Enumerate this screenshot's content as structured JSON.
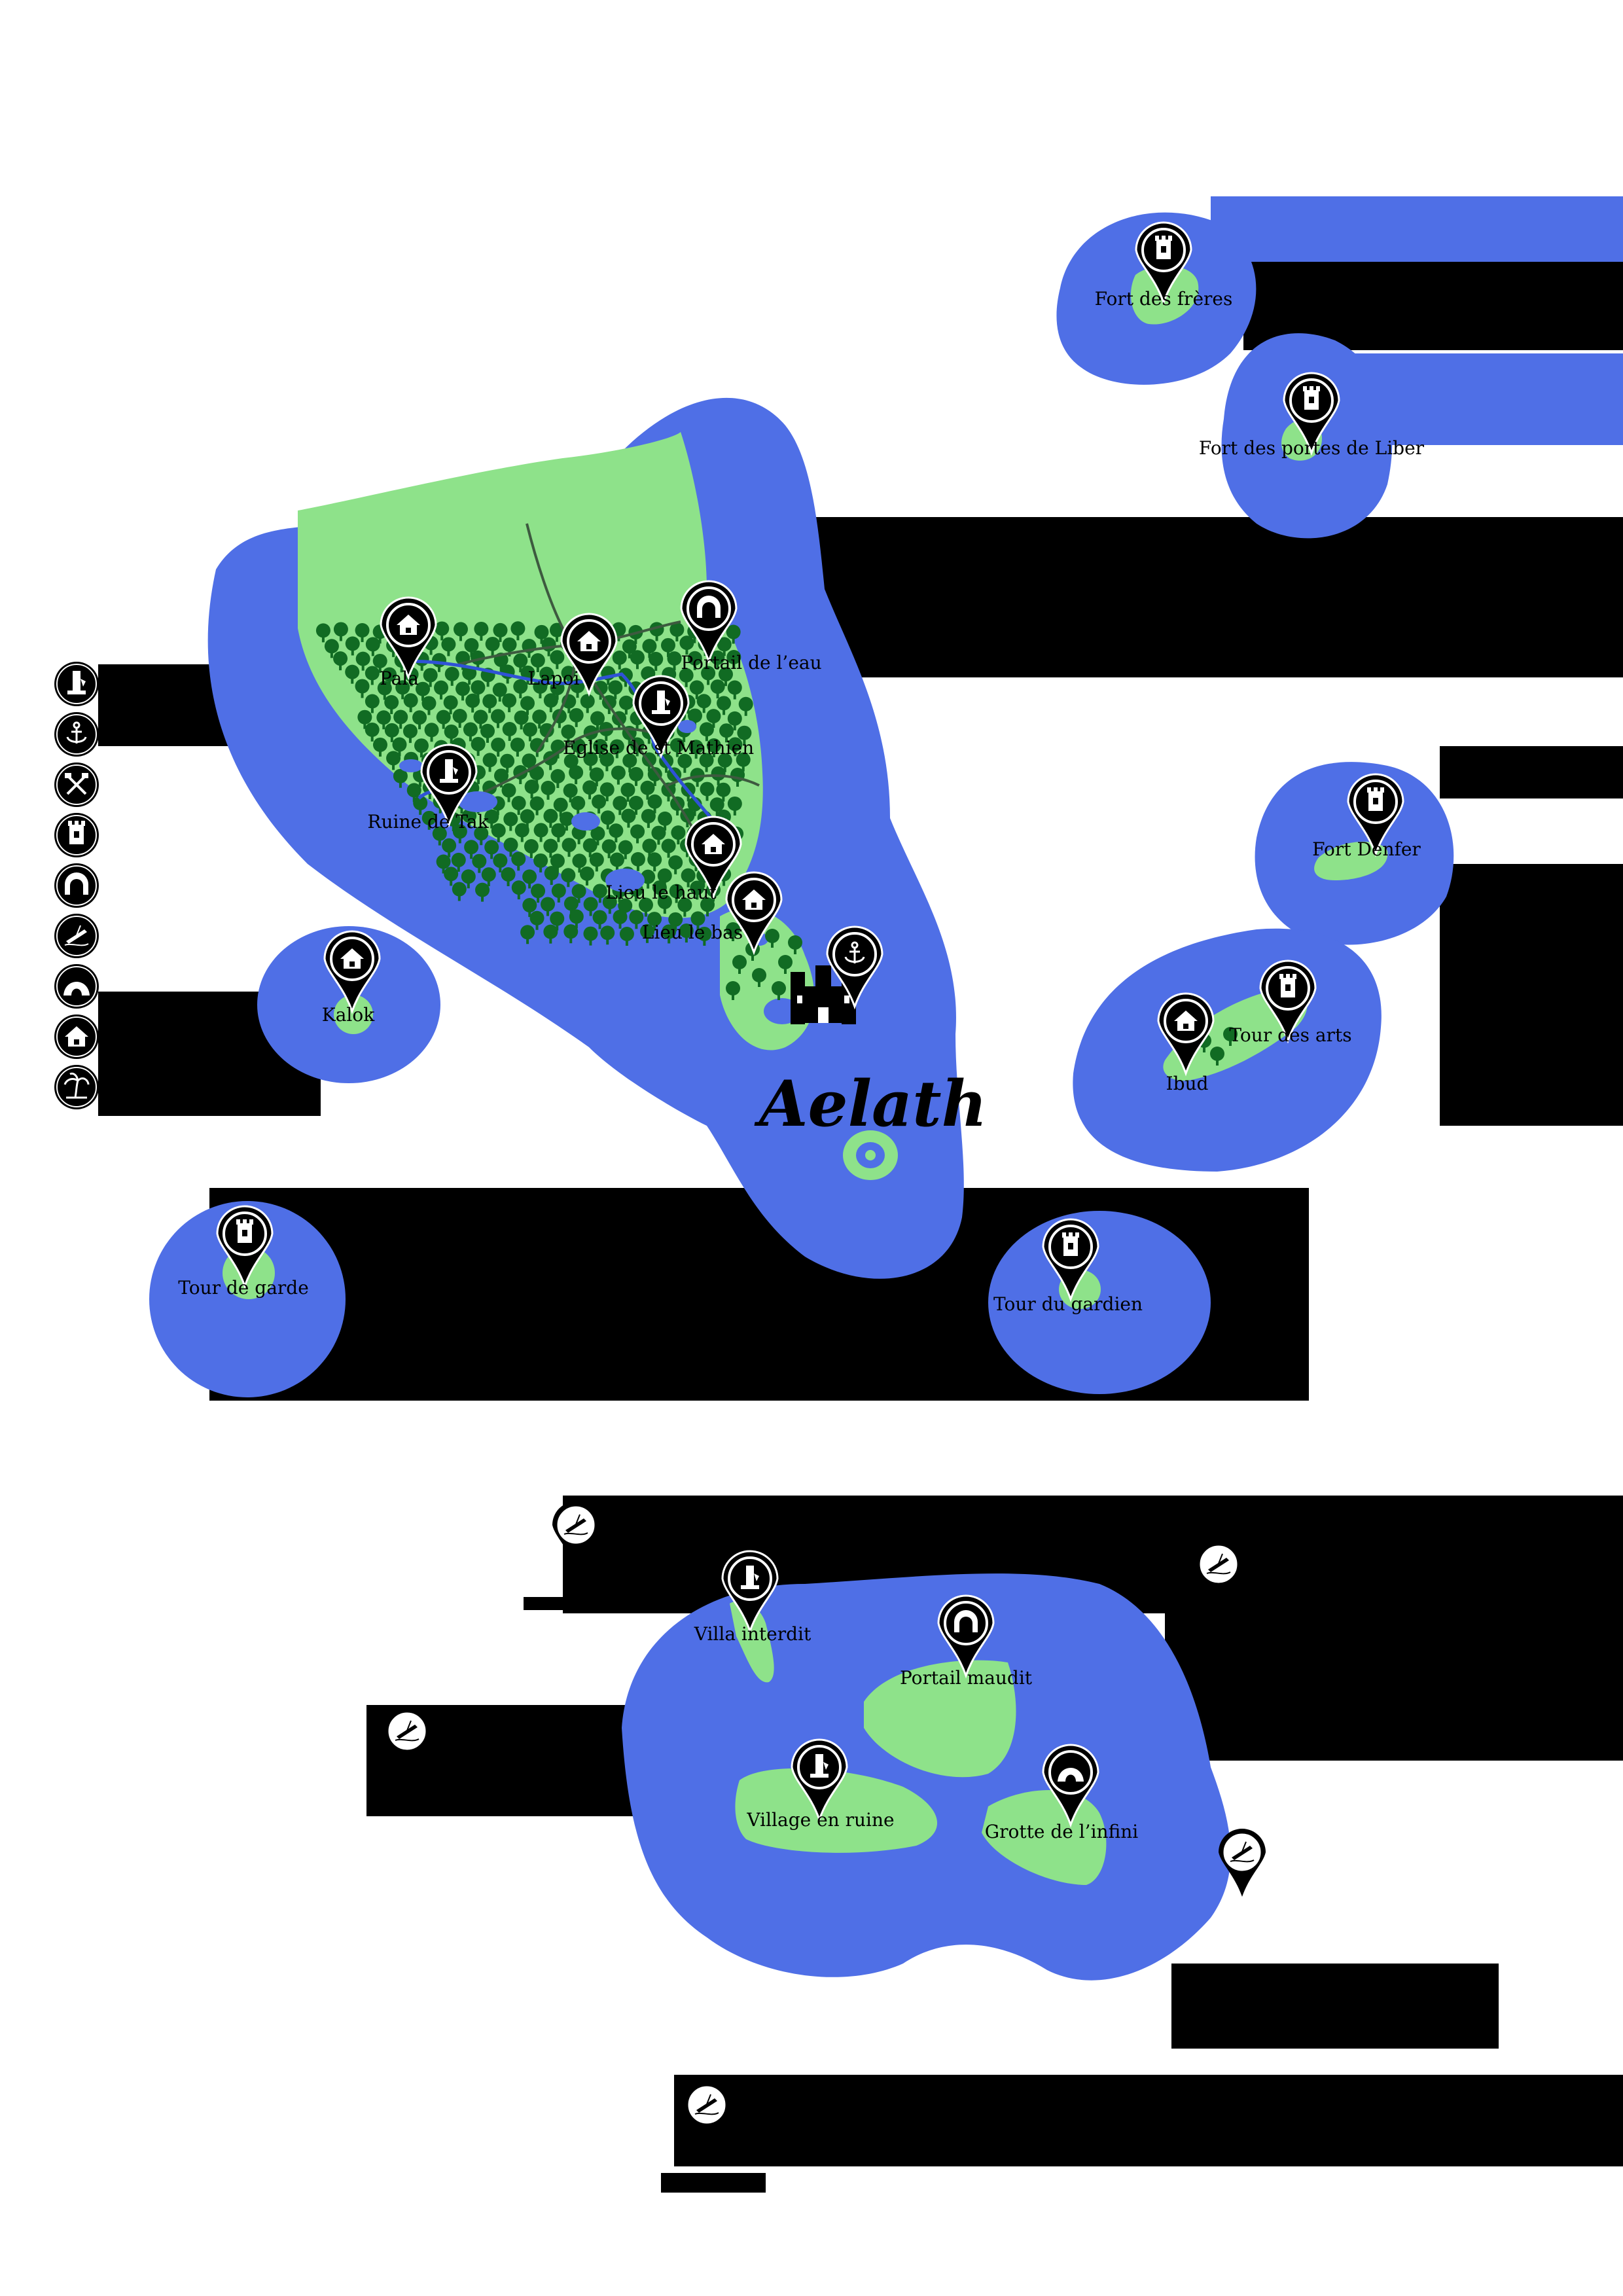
{
  "title": "Aelath",
  "colors": {
    "water": "#4f6fe6",
    "land": "#8ee28a",
    "forest": "#116b23",
    "river": "#2f52d6",
    "road": "#3d5a3f",
    "ink": "#000000"
  },
  "legend": [
    {
      "icon": "ruin-icon"
    },
    {
      "icon": "anchor-icon"
    },
    {
      "icon": "crossed-hammers-icon"
    },
    {
      "icon": "tower-icon"
    },
    {
      "icon": "portal-icon"
    },
    {
      "icon": "shipwreck-icon"
    },
    {
      "icon": "cave-icon"
    },
    {
      "icon": "house-icon"
    },
    {
      "icon": "palm-tree-icon"
    }
  ],
  "places": [
    {
      "id": "fort-des-freres",
      "label": "Fort des frères",
      "icon": "tower-icon"
    },
    {
      "id": "fort-des-portes-de-liber",
      "label": "Fort des portes de Liber",
      "icon": "tower-icon"
    },
    {
      "id": "pala",
      "label": "Pala",
      "icon": "house-icon"
    },
    {
      "id": "lapoi",
      "label": "Lapoi",
      "icon": "house-icon"
    },
    {
      "id": "portail-de-leau",
      "label": "Portail de l’eau",
      "icon": "portal-icon"
    },
    {
      "id": "eglise-de-st-mathien",
      "label": "Eglise de st Mathien",
      "icon": "ruin-icon"
    },
    {
      "id": "ruine-de-tak",
      "label": "Ruine de Tak",
      "icon": "ruin-icon"
    },
    {
      "id": "lieu-le-haut",
      "label": "Lieu le haut",
      "icon": "house-icon"
    },
    {
      "id": "lieu-le-bas",
      "label": "Lieu le bas",
      "icon": "house-icon"
    },
    {
      "id": "kalok",
      "label": "Kalok",
      "icon": "house-icon"
    },
    {
      "id": "fort-denfer",
      "label": "Fort Denfer",
      "icon": "tower-icon"
    },
    {
      "id": "tour-des-arts",
      "label": "Tour des arts",
      "icon": "tower-icon"
    },
    {
      "id": "ibud",
      "label": "Ibud",
      "icon": "house-icon"
    },
    {
      "id": "tour-de-garde",
      "label": "Tour de garde",
      "icon": "tower-icon"
    },
    {
      "id": "tour-du-gardien",
      "label": "Tour du gardien",
      "icon": "tower-icon"
    },
    {
      "id": "villa-interdit",
      "label": "Villa interdit",
      "icon": "ruin-icon"
    },
    {
      "id": "portail-maudit",
      "label": "Portail maudit",
      "icon": "portal-icon"
    },
    {
      "id": "village-en-ruine",
      "label": "Village en ruine",
      "icon": "ruin-icon"
    },
    {
      "id": "grotte-de-linfini",
      "label": "Grotte de l’infini",
      "icon": "cave-icon"
    }
  ],
  "extra_markers": [
    {
      "id": "port-aelath",
      "icon": "anchor-icon"
    },
    {
      "id": "castle-aelath",
      "icon": "castle-icon"
    },
    {
      "id": "wreck-1",
      "icon": "shipwreck-icon"
    },
    {
      "id": "wreck-2",
      "icon": "shipwreck-icon"
    },
    {
      "id": "wreck-3",
      "icon": "shipwreck-icon"
    },
    {
      "id": "wreck-4",
      "icon": "shipwreck-icon"
    },
    {
      "id": "wreck-5",
      "icon": "shipwreck-icon"
    }
  ]
}
